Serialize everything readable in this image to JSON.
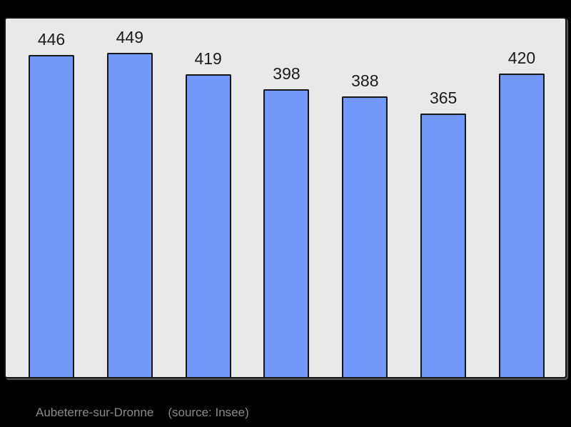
{
  "chart_data": {
    "type": "bar",
    "title": "",
    "values": [
      446,
      449,
      419,
      398,
      388,
      365,
      420
    ],
    "bar_labels": [
      "446",
      "449",
      "419",
      "398",
      "388",
      "365",
      "420"
    ],
    "ylim": [
      0,
      496
    ],
    "grid": false,
    "legend_position": "none",
    "bar_count": 7
  },
  "caption": {
    "commune_name": "Aubeterre-sur-Dronne",
    "source_note": "(source: Insee)"
  },
  "colors": {
    "page_background": "#000000",
    "plot_background": "#e9e9e9",
    "frame_border": "#151515",
    "bar_fill": "#7398fb",
    "bar_border": "#161616",
    "value_label_text": "#1b1b1b",
    "caption_text": "#8a8a8a"
  }
}
